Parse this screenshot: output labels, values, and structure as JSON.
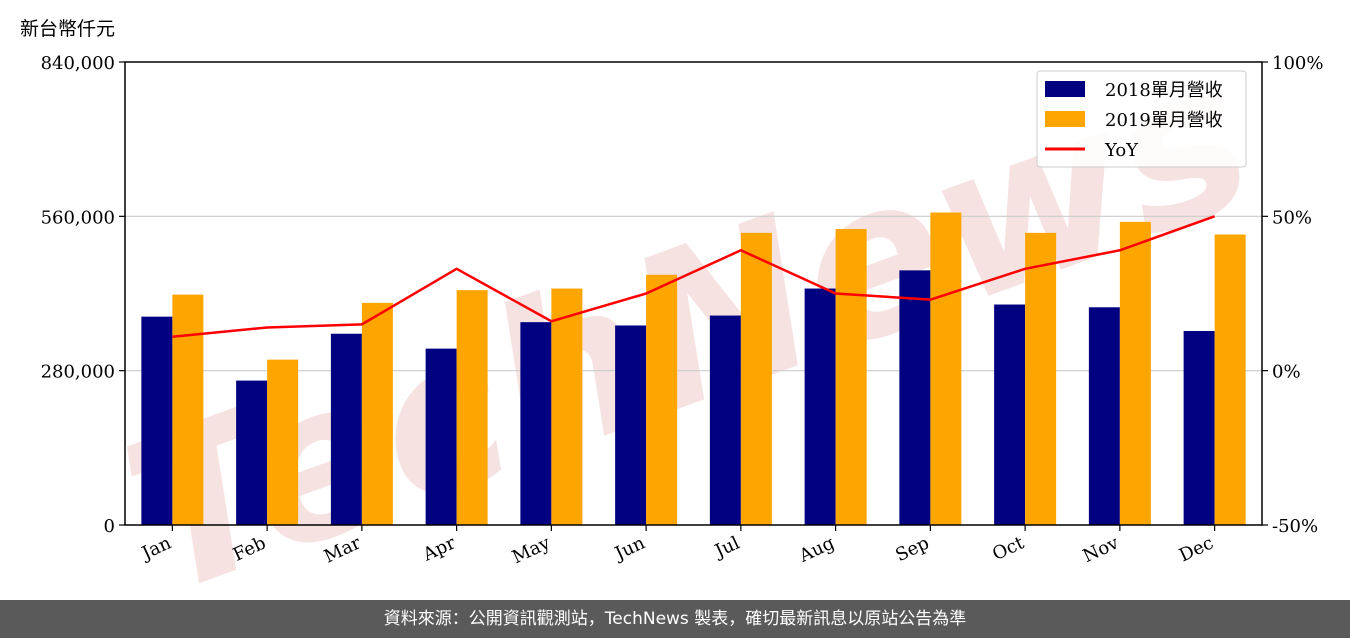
{
  "unit_label": "新台幣仟元",
  "footer_text": "資料來源：公開資訊觀測站，TechNews 製表，確切最新訊息以原站公告為準",
  "watermark": "TechNews",
  "colors": {
    "bar_2018": "#000080",
    "bar_2019": "#ffa500",
    "yoy": "#ff0000",
    "grid": "#cccccc",
    "watermark": "#f2cfcf",
    "footer_bg": "#5a5a5a"
  },
  "chart_data": {
    "type": "bar",
    "categories": [
      "Jan",
      "Feb",
      "Mar",
      "Apr",
      "May",
      "Jun",
      "Jul",
      "Aug",
      "Sep",
      "Oct",
      "Nov",
      "Dec"
    ],
    "series": [
      {
        "name": "2018單月營收",
        "values": [
          378000,
          262000,
          347000,
          320000,
          368000,
          362000,
          380000,
          429000,
          462000,
          400000,
          395000,
          352000
        ]
      },
      {
        "name": "2019單月營收",
        "values": [
          418000,
          300000,
          403000,
          426000,
          429000,
          454000,
          530000,
          537000,
          567000,
          530000,
          550000,
          527000
        ]
      }
    ],
    "line_series": {
      "name": "YoY",
      "values": [
        11,
        14,
        15,
        33,
        16,
        25,
        39,
        25,
        23,
        33,
        39,
        50
      ]
    },
    "ylim": [
      0,
      840000
    ],
    "yticks": [
      0,
      280000,
      560000,
      840000
    ],
    "ytick_labels": [
      "0",
      "280,000",
      "560,000",
      "840,000"
    ],
    "y2lim": [
      -50,
      100
    ],
    "y2ticks": [
      -50,
      0,
      50,
      100
    ],
    "y2tick_labels": [
      "-50%",
      "0%",
      "50%",
      "100%"
    ],
    "grid": "horizontal",
    "legend_position": "top-right"
  }
}
